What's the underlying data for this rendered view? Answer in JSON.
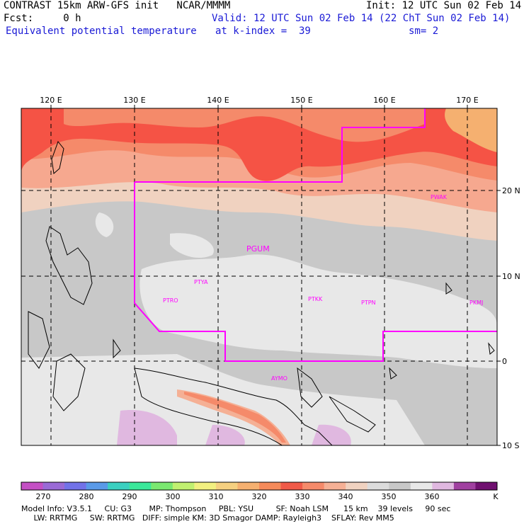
{
  "header": {
    "title": "CONTRAST 15km ARW-GFS init   NCAR/MMMM",
    "fcst": "Fcst:     0 h",
    "field": "Equivalent potential temperature",
    "init": "Init: 12 UTC Sun 02 Feb 14",
    "valid": "Valid: 12 UTC Sun 02 Feb 14 (22 ChT Sun 02 Feb 14)",
    "level": "at k-index =  39",
    "smooth": "sm= 2"
  },
  "map": {
    "lon_labels": [
      "120 E",
      "130 E",
      "140 E",
      "150 E",
      "160 E",
      "170 E"
    ],
    "lat_labels": [
      "20 N",
      "10 N",
      "0",
      "10 S"
    ],
    "stations": [
      {
        "id": "PGUM"
      },
      {
        "id": "PTYA"
      },
      {
        "id": "PTRO"
      },
      {
        "id": "PTKK"
      },
      {
        "id": "PTPN"
      },
      {
        "id": "PKMJ"
      },
      {
        "id": "PWAK"
      },
      {
        "id": "AYMO"
      }
    ],
    "colors": {
      "boundary": "#ff00ff",
      "grid": "#000000",
      "high": "#f55345",
      "mid": "#f6a88f",
      "low": "#c8c8c8",
      "lowest": "#e8e8e8"
    }
  },
  "colorbar": {
    "ticks": [
      "270",
      "280",
      "290",
      "300",
      "310",
      "320",
      "330",
      "340",
      "350",
      "360"
    ],
    "unit": "K",
    "swatches": [
      "#c450c4",
      "#9a6ad6",
      "#7272e8",
      "#5a9ae8",
      "#3ad0c0",
      "#3ae89a",
      "#7ae870",
      "#c0f070",
      "#f2f080",
      "#f5d080",
      "#f5b070",
      "#f58a5a",
      "#f05a48",
      "#f58a6a",
      "#f5b095",
      "#f0d2c0",
      "#dcdcdc",
      "#c8c8c8",
      "#e8e8e8",
      "#e0b8e0",
      "#a040a0",
      "#701070"
    ]
  },
  "footer": {
    "line1": "Model Info: V3.5.1     CU: G3       MP: Thompson     PBL: YSU         SF: Noah LSM      15 km    39 levels     90 sec",
    "line2": "     LW: RRTMG     SW: RRTMG   DIFF: simple KM: 3D Smagor DAMP: Rayleigh3    SFLAY: Rev MM5"
  }
}
